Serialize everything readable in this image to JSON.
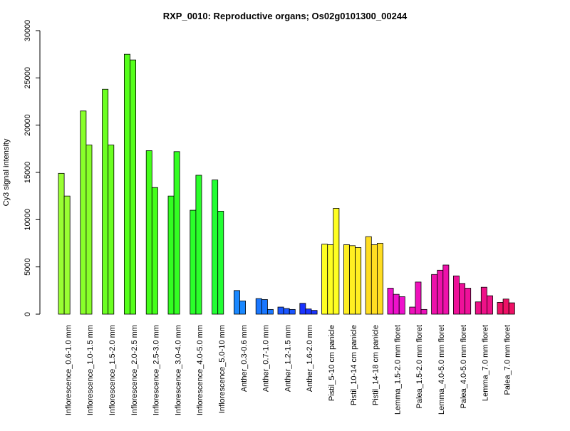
{
  "chart_data": {
    "type": "bar",
    "title": "RXP_0010: Reproductive organs; Os02g0101300_00244",
    "xlabel": "",
    "ylabel": "Cy3 signal intensity",
    "ylim": [
      0,
      30000
    ],
    "yticks": [
      0,
      5000,
      10000,
      15000,
      20000,
      25000,
      30000
    ],
    "grid": false,
    "groups": [
      {
        "label": "Inflorescence_0.6-1.0 mm",
        "color": "#99ff33",
        "values": [
          14900,
          12500
        ]
      },
      {
        "label": "Inflorescence_1.0-1.5 mm",
        "color": "#88ff2a",
        "values": [
          21500,
          17900
        ]
      },
      {
        "label": "Inflorescence_1.5-2.0 mm",
        "color": "#6cff22",
        "values": [
          23800,
          17900
        ]
      },
      {
        "label": "Inflorescence_2.0-2.5 mm",
        "color": "#55ff1a",
        "values": [
          27500,
          26900
        ]
      },
      {
        "label": "Inflorescence_2.5-3.0 mm",
        "color": "#44ff1a",
        "values": [
          17300,
          13400
        ]
      },
      {
        "label": "Inflorescence_3.0-4.0 mm",
        "color": "#33ff22",
        "values": [
          12500,
          17200
        ]
      },
      {
        "label": "Inflorescence_4.0-5.0 mm",
        "color": "#2aff2a",
        "values": [
          11000,
          14700
        ]
      },
      {
        "label": "Inflorescence_5.0-10 mm",
        "color": "#22ff33",
        "values": [
          14200,
          10900
        ]
      },
      {
        "label": "Anther_0.3-0.6 mm",
        "color": "#1a88ff",
        "values": [
          2500,
          1400
        ]
      },
      {
        "label": "Anther_0.7-1.0 mm",
        "color": "#1a77ff",
        "values": [
          1650,
          1550,
          500
        ]
      },
      {
        "label": "Anther_1.2-1.5 mm",
        "color": "#1a55ff",
        "values": [
          750,
          600,
          500
        ]
      },
      {
        "label": "Anther_1.6-2.0 mm",
        "color": "#1a33ff",
        "values": [
          1150,
          550,
          400
        ]
      },
      {
        "label": "Pistil_5-10 cm panicle",
        "color": "#ffff22",
        "values": [
          7400,
          7350,
          11200
        ]
      },
      {
        "label": "Pistil_10-14 cm panicle",
        "color": "#ffee22",
        "values": [
          7350,
          7250,
          7050
        ]
      },
      {
        "label": "Pistil_14-18 cm panicle",
        "color": "#ffdd22",
        "values": [
          8200,
          7350,
          7500
        ]
      },
      {
        "label": "Lemma_1.5-2.0 mm floret",
        "color": "#ee11cc",
        "values": [
          2750,
          2100,
          1850
        ]
      },
      {
        "label": "Palea_1.5-2.0 mm floret",
        "color": "#ee11bb",
        "values": [
          750,
          3400,
          500
        ]
      },
      {
        "label": "Lemma_4.0-5.0 mm floret",
        "color": "#ee11aa",
        "values": [
          4200,
          4650,
          5200
        ]
      },
      {
        "label": "Palea_4.0-5.0 mm floret",
        "color": "#ee1199",
        "values": [
          4050,
          3250,
          2750
        ]
      },
      {
        "label": "Lemma_7.0 mm floret",
        "color": "#ee1188",
        "values": [
          1300,
          2850,
          1950
        ]
      },
      {
        "label": "Palea_7.0 mm floret",
        "color": "#ee1166",
        "values": [
          1250,
          1600,
          1200
        ]
      }
    ]
  }
}
